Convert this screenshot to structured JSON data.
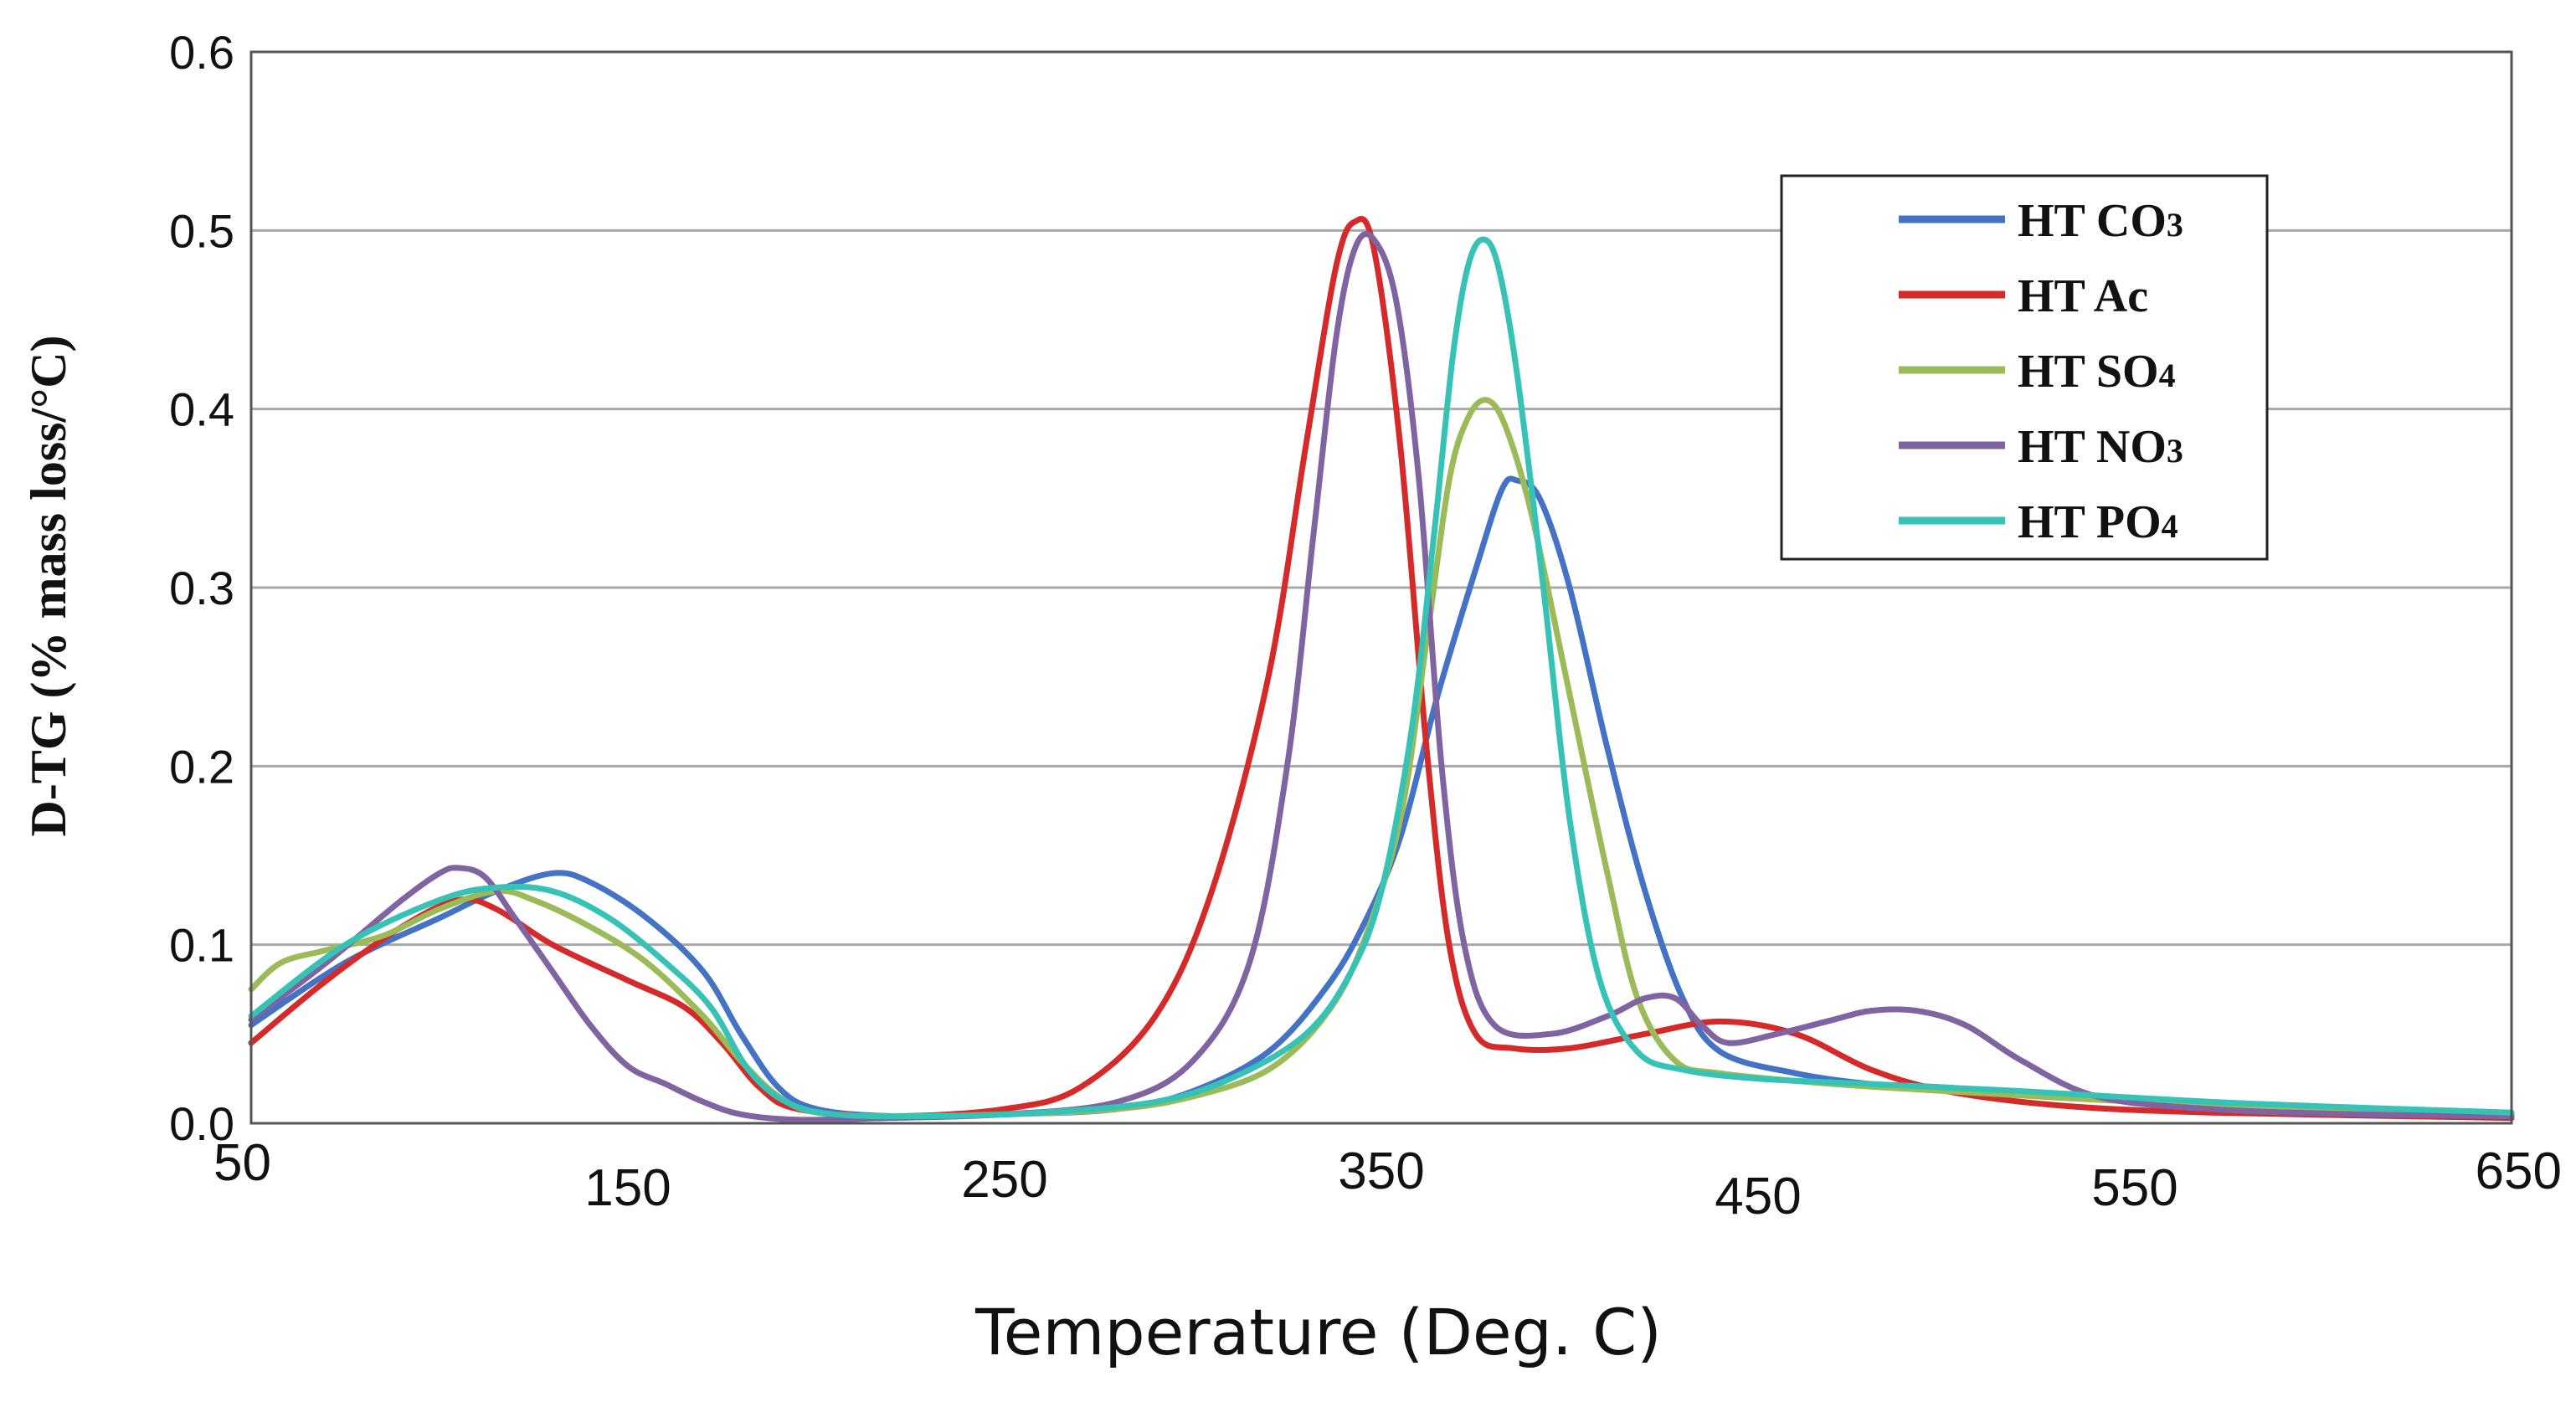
{
  "chart_data": {
    "type": "line",
    "title": "",
    "xlabel": "Temperature (Deg. C)",
    "ylabel": "D-TG (% mass loss/°C)",
    "xlim": [
      50,
      650
    ],
    "ylim": [
      0,
      0.6
    ],
    "x_ticks": [
      "50",
      "150",
      "250",
      "350",
      "450",
      "550",
      "650"
    ],
    "y_ticks": [
      "0.0",
      "0.1",
      "0.2",
      "0.3",
      "0.4",
      "0.5",
      "0.6"
    ],
    "grid": "horizontal",
    "legend_position": "top-right",
    "series": [
      {
        "name": "HT CO3",
        "label_main": "HT CO",
        "label_sub": "3",
        "color": "#4472C4",
        "points": [
          [
            50,
            0.055
          ],
          [
            75,
            0.09
          ],
          [
            100,
            0.115
          ],
          [
            115,
            0.13
          ],
          [
            130,
            0.14
          ],
          [
            140,
            0.135
          ],
          [
            155,
            0.115
          ],
          [
            170,
            0.085
          ],
          [
            180,
            0.05
          ],
          [
            190,
            0.02
          ],
          [
            200,
            0.008
          ],
          [
            220,
            0.004
          ],
          [
            250,
            0.005
          ],
          [
            280,
            0.008
          ],
          [
            300,
            0.018
          ],
          [
            320,
            0.04
          ],
          [
            335,
            0.075
          ],
          [
            345,
            0.11
          ],
          [
            355,
            0.16
          ],
          [
            365,
            0.24
          ],
          [
            375,
            0.31
          ],
          [
            382,
            0.355
          ],
          [
            386,
            0.36
          ],
          [
            392,
            0.35
          ],
          [
            400,
            0.3
          ],
          [
            410,
            0.21
          ],
          [
            420,
            0.13
          ],
          [
            430,
            0.07
          ],
          [
            440,
            0.04
          ],
          [
            460,
            0.028
          ],
          [
            480,
            0.022
          ],
          [
            500,
            0.02
          ],
          [
            550,
            0.013
          ],
          [
            600,
            0.008
          ],
          [
            650,
            0.005
          ]
        ]
      },
      {
        "name": "HT Ac",
        "label_main": "HT Ac",
        "label_sub": "",
        "color": "#D42A2A",
        "points": [
          [
            50,
            0.045
          ],
          [
            70,
            0.08
          ],
          [
            90,
            0.11
          ],
          [
            105,
            0.125
          ],
          [
            115,
            0.12
          ],
          [
            130,
            0.1
          ],
          [
            150,
            0.08
          ],
          [
            165,
            0.065
          ],
          [
            175,
            0.045
          ],
          [
            185,
            0.02
          ],
          [
            195,
            0.008
          ],
          [
            220,
            0.004
          ],
          [
            250,
            0.008
          ],
          [
            270,
            0.02
          ],
          [
            290,
            0.06
          ],
          [
            305,
            0.13
          ],
          [
            320,
            0.25
          ],
          [
            330,
            0.38
          ],
          [
            338,
            0.48
          ],
          [
            343,
            0.505
          ],
          [
            348,
            0.49
          ],
          [
            355,
            0.38
          ],
          [
            362,
            0.21
          ],
          [
            368,
            0.1
          ],
          [
            375,
            0.05
          ],
          [
            385,
            0.042
          ],
          [
            400,
            0.042
          ],
          [
            420,
            0.05
          ],
          [
            440,
            0.057
          ],
          [
            460,
            0.05
          ],
          [
            480,
            0.03
          ],
          [
            500,
            0.018
          ],
          [
            530,
            0.01
          ],
          [
            570,
            0.006
          ],
          [
            650,
            0.003
          ]
        ]
      },
      {
        "name": "HT SO4",
        "label_main": "HT SO",
        "label_sub": "4",
        "color": "#9BBB59",
        "points": [
          [
            50,
            0.075
          ],
          [
            58,
            0.09
          ],
          [
            70,
            0.097
          ],
          [
            85,
            0.105
          ],
          [
            100,
            0.12
          ],
          [
            115,
            0.13
          ],
          [
            125,
            0.125
          ],
          [
            140,
            0.11
          ],
          [
            155,
            0.09
          ],
          [
            170,
            0.06
          ],
          [
            180,
            0.035
          ],
          [
            190,
            0.015
          ],
          [
            200,
            0.006
          ],
          [
            220,
            0.004
          ],
          [
            250,
            0.005
          ],
          [
            280,
            0.008
          ],
          [
            300,
            0.015
          ],
          [
            320,
            0.03
          ],
          [
            335,
            0.06
          ],
          [
            345,
            0.1
          ],
          [
            355,
            0.17
          ],
          [
            362,
            0.27
          ],
          [
            368,
            0.36
          ],
          [
            373,
            0.395
          ],
          [
            378,
            0.405
          ],
          [
            383,
            0.39
          ],
          [
            390,
            0.34
          ],
          [
            400,
            0.24
          ],
          [
            410,
            0.14
          ],
          [
            418,
            0.07
          ],
          [
            428,
            0.035
          ],
          [
            440,
            0.028
          ],
          [
            470,
            0.022
          ],
          [
            500,
            0.018
          ],
          [
            550,
            0.012
          ],
          [
            600,
            0.007
          ],
          [
            650,
            0.004
          ]
        ]
      },
      {
        "name": "HT NO3",
        "label_main": "HT NO",
        "label_sub": "3",
        "color": "#8064A2",
        "points": [
          [
            50,
            0.058
          ],
          [
            70,
            0.09
          ],
          [
            90,
            0.125
          ],
          [
            100,
            0.14
          ],
          [
            105,
            0.143
          ],
          [
            112,
            0.138
          ],
          [
            120,
            0.115
          ],
          [
            130,
            0.085
          ],
          [
            140,
            0.055
          ],
          [
            150,
            0.032
          ],
          [
            160,
            0.022
          ],
          [
            170,
            0.012
          ],
          [
            180,
            0.005
          ],
          [
            195,
            0.002
          ],
          [
            220,
            0.003
          ],
          [
            250,
            0.005
          ],
          [
            280,
            0.012
          ],
          [
            300,
            0.035
          ],
          [
            315,
            0.09
          ],
          [
            325,
            0.2
          ],
          [
            332,
            0.33
          ],
          [
            338,
            0.44
          ],
          [
            343,
            0.49
          ],
          [
            348,
            0.495
          ],
          [
            354,
            0.46
          ],
          [
            360,
            0.36
          ],
          [
            366,
            0.2
          ],
          [
            372,
            0.1
          ],
          [
            380,
            0.055
          ],
          [
            395,
            0.05
          ],
          [
            410,
            0.06
          ],
          [
            420,
            0.07
          ],
          [
            428,
            0.07
          ],
          [
            435,
            0.055
          ],
          [
            442,
            0.045
          ],
          [
            455,
            0.05
          ],
          [
            470,
            0.058
          ],
          [
            480,
            0.063
          ],
          [
            492,
            0.063
          ],
          [
            505,
            0.055
          ],
          [
            520,
            0.035
          ],
          [
            540,
            0.015
          ],
          [
            570,
            0.008
          ],
          [
            610,
            0.005
          ],
          [
            650,
            0.004
          ]
        ]
      },
      {
        "name": "HT PO4",
        "label_main": "HT PO",
        "label_sub": "4",
        "color": "#36C2B4",
        "points": [
          [
            50,
            0.06
          ],
          [
            75,
            0.1
          ],
          [
            100,
            0.125
          ],
          [
            115,
            0.132
          ],
          [
            130,
            0.13
          ],
          [
            145,
            0.115
          ],
          [
            160,
            0.09
          ],
          [
            172,
            0.065
          ],
          [
            182,
            0.03
          ],
          [
            192,
            0.012
          ],
          [
            205,
            0.005
          ],
          [
            230,
            0.004
          ],
          [
            260,
            0.006
          ],
          [
            290,
            0.012
          ],
          [
            310,
            0.025
          ],
          [
            330,
            0.05
          ],
          [
            342,
            0.085
          ],
          [
            350,
            0.13
          ],
          [
            358,
            0.22
          ],
          [
            364,
            0.33
          ],
          [
            369,
            0.43
          ],
          [
            373,
            0.48
          ],
          [
            377,
            0.495
          ],
          [
            381,
            0.48
          ],
          [
            386,
            0.42
          ],
          [
            393,
            0.3
          ],
          [
            400,
            0.17
          ],
          [
            408,
            0.08
          ],
          [
            418,
            0.04
          ],
          [
            430,
            0.03
          ],
          [
            450,
            0.025
          ],
          [
            480,
            0.022
          ],
          [
            520,
            0.018
          ],
          [
            570,
            0.012
          ],
          [
            620,
            0.008
          ],
          [
            650,
            0.006
          ]
        ]
      }
    ]
  }
}
